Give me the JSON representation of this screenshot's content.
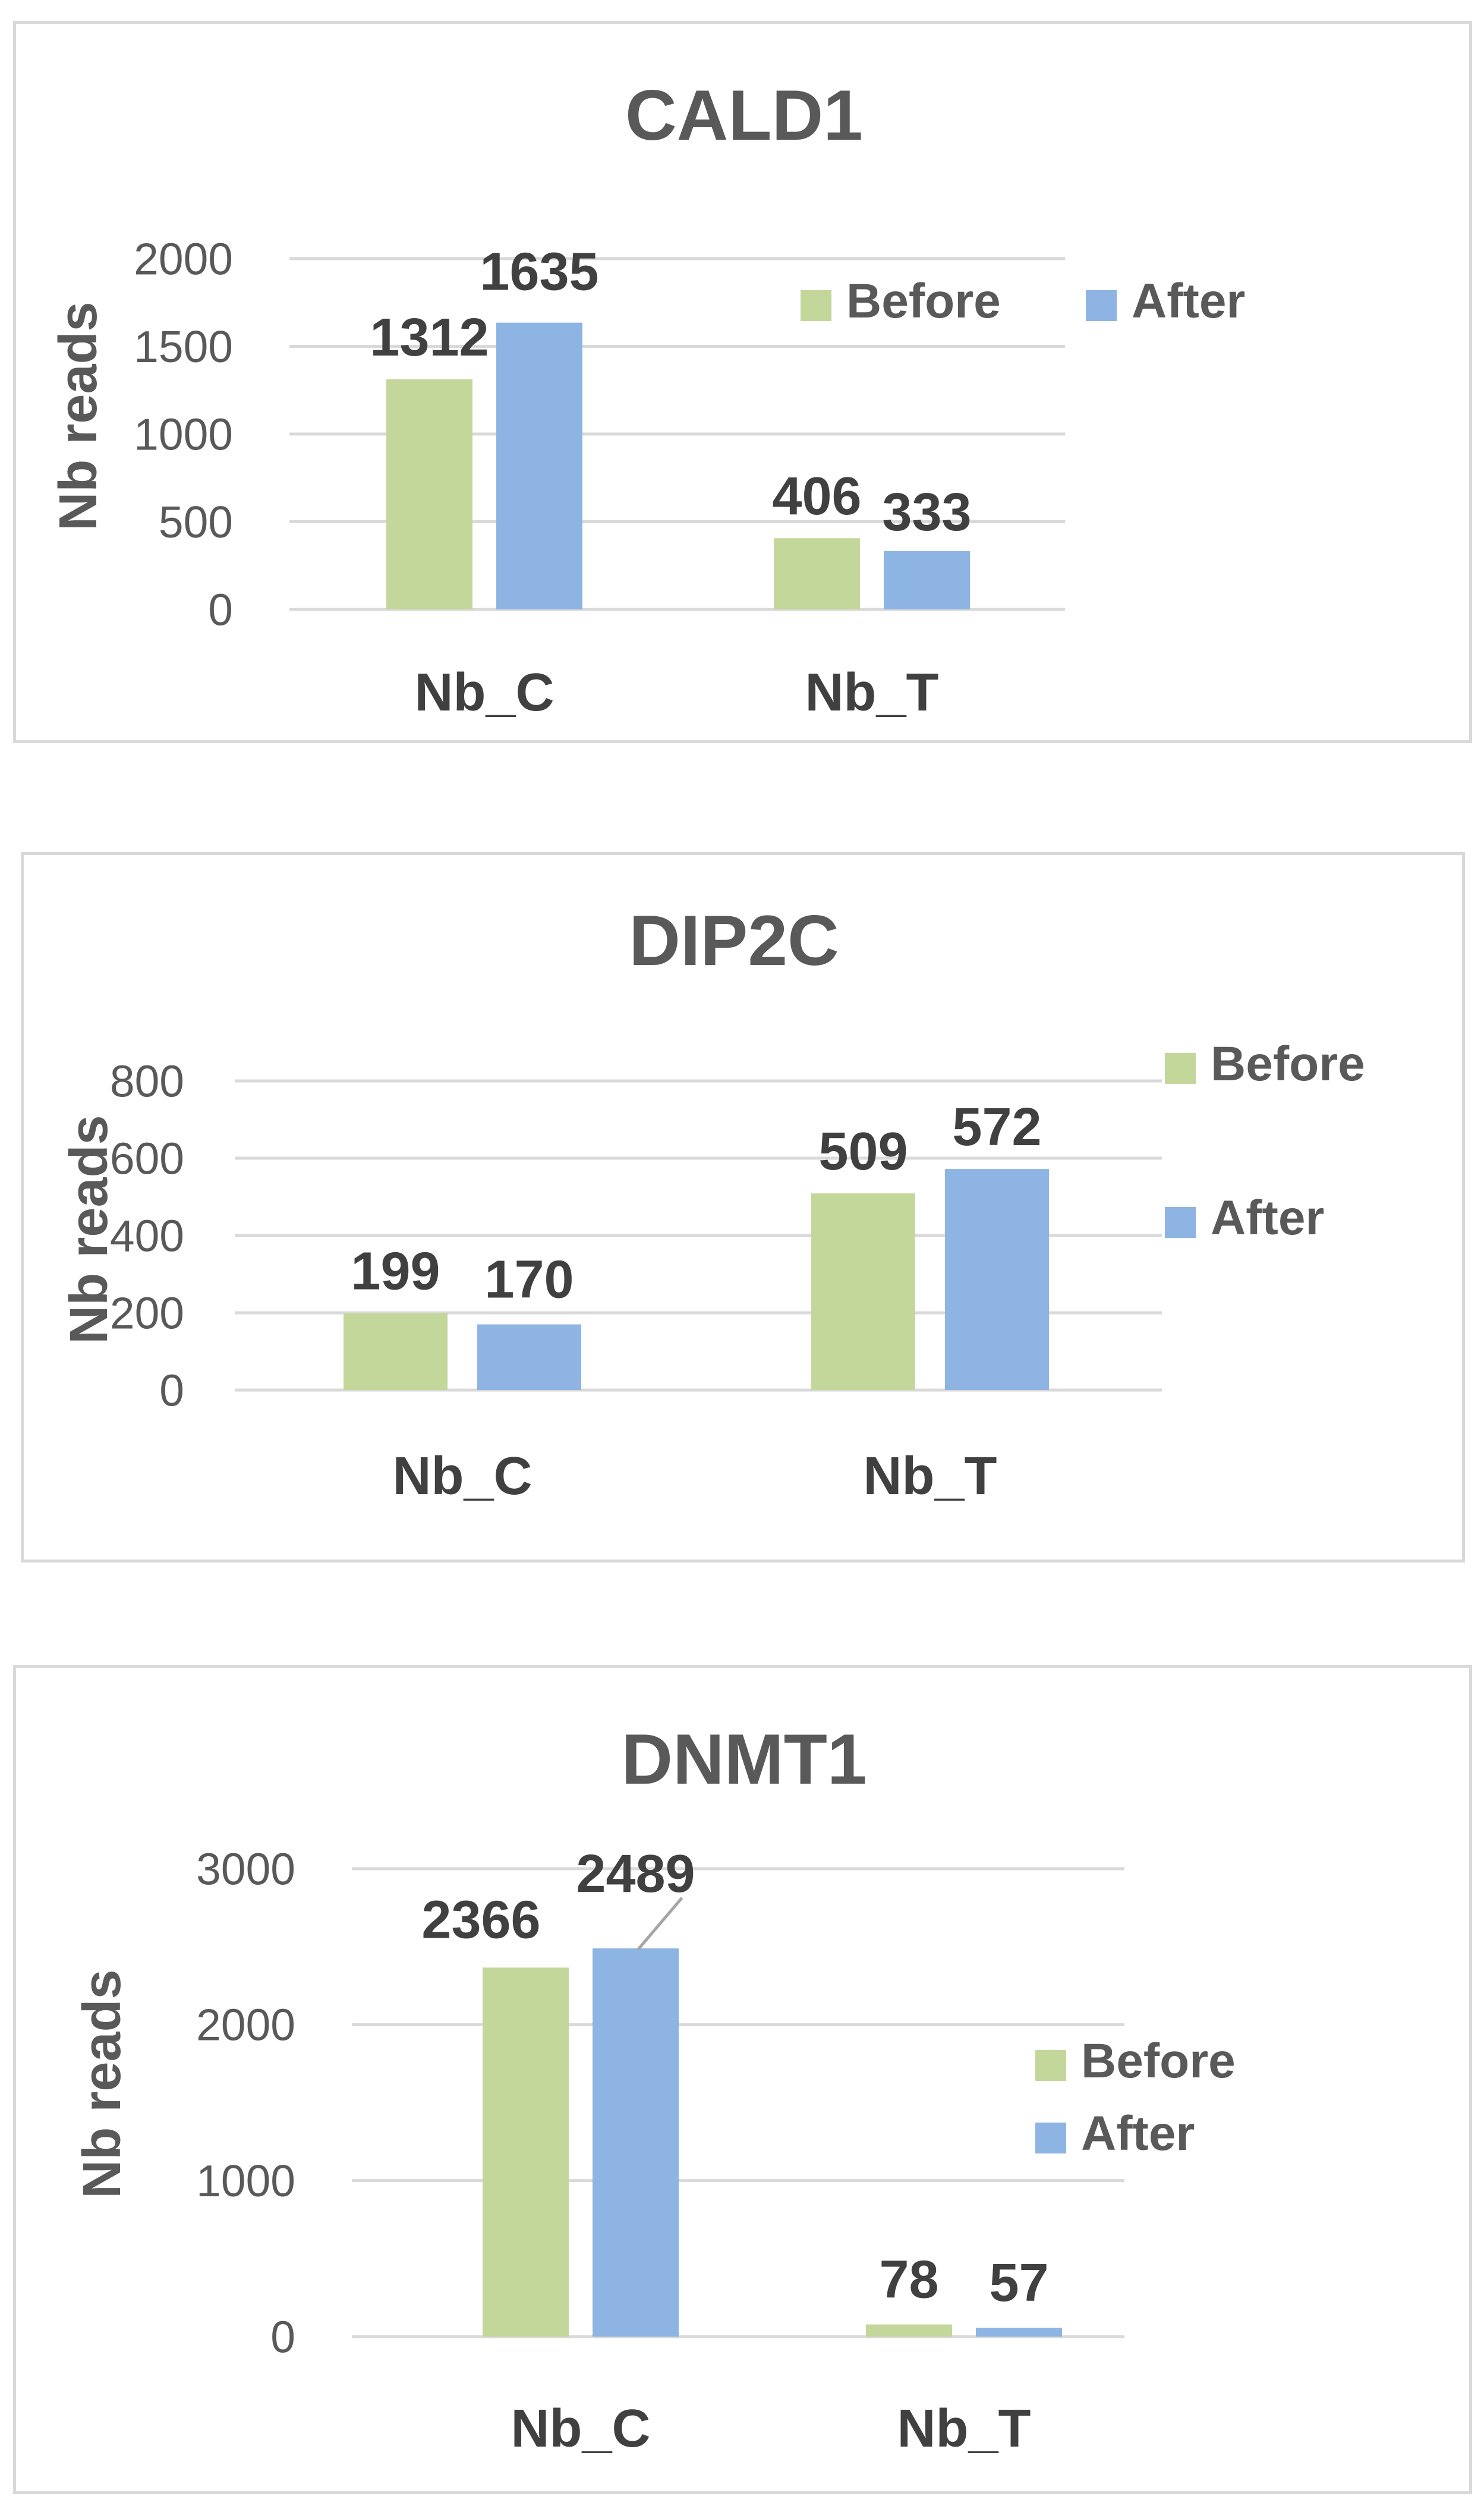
{
  "chart_data": [
    {
      "type": "bar",
      "title": "CALD1",
      "ylabel": "Nb reads",
      "xlabel": "",
      "categories": [
        "Nb_C",
        "Nb_T"
      ],
      "yticks": [
        "0",
        "500",
        "1000",
        "1500",
        "2000"
      ],
      "ylim": [
        0,
        2000
      ],
      "grid": true,
      "legend_position": "top-right",
      "series": [
        {
          "name": "Before",
          "color": "#c4d79b",
          "values": [
            1312,
            406
          ],
          "labels": [
            "1312",
            "406"
          ]
        },
        {
          "name": "After",
          "color": "#8db4e2",
          "values": [
            1635,
            333
          ],
          "labels": [
            "1635",
            "333"
          ]
        }
      ]
    },
    {
      "type": "bar",
      "title": "DIP2C",
      "ylabel": "Nb reads",
      "xlabel": "",
      "categories": [
        "Nb_C",
        "Nb_T"
      ],
      "yticks": [
        "0",
        "200",
        "400",
        "600",
        "800"
      ],
      "ylim": [
        0,
        800
      ],
      "grid": true,
      "legend_position": "right",
      "series": [
        {
          "name": "Before",
          "color": "#c4d79b",
          "values": [
            199,
            509
          ],
          "labels": [
            "199",
            "509"
          ]
        },
        {
          "name": "After",
          "color": "#8db4e2",
          "values": [
            170,
            572
          ],
          "labels": [
            "170",
            "572"
          ]
        }
      ]
    },
    {
      "type": "bar",
      "title": "DNMT1",
      "ylabel": "Nb reads",
      "xlabel": "",
      "categories": [
        "Nb_C",
        "Nb_T"
      ],
      "yticks": [
        "0",
        "1000",
        "2000",
        "3000"
      ],
      "ylim": [
        0,
        3000
      ],
      "grid": true,
      "legend_position": "right",
      "series": [
        {
          "name": "Before",
          "color": "#c4d79b",
          "values": [
            2366,
            78
          ],
          "labels": [
            "2366",
            "78"
          ]
        },
        {
          "name": "After",
          "color": "#8db4e2",
          "values": [
            2489,
            57
          ],
          "labels": [
            "2489",
            "57"
          ]
        }
      ]
    }
  ]
}
